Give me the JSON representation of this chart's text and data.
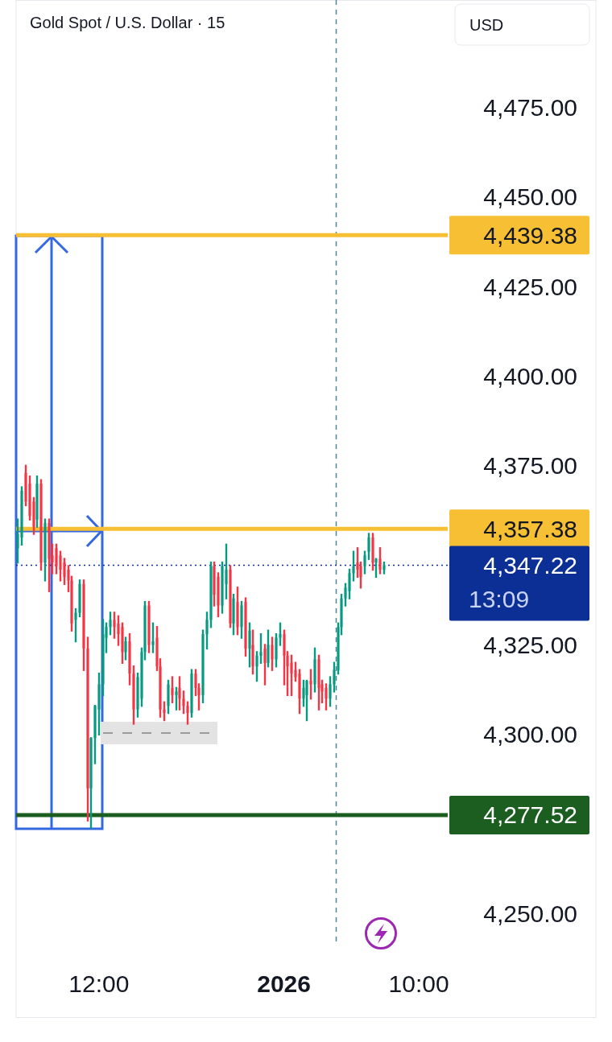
{
  "chart_data": {
    "type": "candlestick",
    "title": "Gold Spot / U.S. Dollar · 15",
    "categories": [
      null,
      null,
      null,
      null,
      null,
      null,
      null,
      null,
      null,
      null,
      null,
      null,
      null,
      null,
      null,
      null,
      null,
      null,
      null,
      null,
      null,
      "12:00",
      null,
      null,
      null,
      null,
      null,
      null,
      null,
      null,
      null,
      null,
      null,
      null,
      null,
      null,
      null,
      null,
      null,
      null,
      null,
      null,
      null,
      null,
      null,
      null,
      null,
      null,
      null,
      null,
      null,
      null,
      null,
      null,
      null,
      null,
      null,
      null,
      null,
      null,
      null,
      null,
      null,
      null,
      null,
      null,
      null,
      null,
      null,
      "2026",
      null,
      null,
      null,
      null,
      null,
      null,
      null,
      null,
      null,
      null,
      null,
      null,
      null,
      null,
      null,
      null,
      null,
      null,
      null,
      null,
      null,
      null,
      null,
      null,
      null,
      null,
      null,
      null,
      null,
      null,
      null,
      null,
      null,
      null,
      "10:00",
      null,
      null,
      null,
      null,
      null,
      null,
      null
    ],
    "ohlc": [
      [
        4352,
        4360,
        4348,
        4356
      ],
      [
        4355,
        4369,
        4353,
        4368
      ],
      [
        4373,
        4375,
        4364,
        4365
      ],
      [
        4370,
        4372,
        4360,
        4361
      ],
      [
        4365,
        4366,
        4356,
        4358
      ],
      [
        4360,
        4372,
        4358,
        4370
      ],
      [
        4370,
        4371,
        4346,
        4348
      ],
      [
        4348,
        4360,
        4343,
        4359
      ],
      [
        4359,
        4360,
        4340,
        4349
      ],
      [
        4350,
        4353,
        4345,
        4348
      ],
      [
        4352,
        4353,
        4345,
        4347
      ],
      [
        4350,
        4351,
        4343,
        4346
      ],
      [
        4348,
        4349,
        4342,
        4344
      ],
      [
        4346,
        4347,
        4340,
        4343
      ],
      [
        4343,
        4344,
        4329,
        4331
      ],
      [
        4332,
        4335,
        4326,
        4334
      ],
      [
        4334,
        4343,
        4333,
        4342
      ],
      [
        4342,
        4343,
        4318,
        4324
      ],
      [
        4324,
        4327,
        4276,
        4285
      ],
      [
        4285,
        4299,
        4274,
        4299
      ],
      [
        4299,
        4308,
        4292,
        4308
      ],
      [
        4307,
        4317,
        4300,
        4314
      ],
      [
        4314,
        4332,
        4311,
        4328
      ],
      [
        4327,
        4331,
        4323,
        4330
      ],
      [
        4330,
        4334,
        4328,
        4332
      ],
      [
        4332,
        4334,
        4327,
        4330
      ],
      [
        4331,
        4333,
        4325,
        4328
      ],
      [
        4330,
        4331,
        4320,
        4323
      ],
      [
        4323,
        4327,
        4321,
        4326
      ],
      [
        4326,
        4328,
        4314,
        4317
      ],
      [
        4317,
        4319,
        4303,
        4307
      ],
      [
        4307,
        4317,
        4305,
        4316
      ],
      [
        4310,
        4324,
        4308,
        4323
      ],
      [
        4323,
        4337,
        4321,
        4336
      ],
      [
        4336,
        4337,
        4323,
        4325
      ],
      [
        4325,
        4331,
        4323,
        4326
      ],
      [
        4327,
        4330,
        4318,
        4319
      ],
      [
        4319,
        4321,
        4305,
        4307
      ],
      [
        4307,
        4309,
        4304,
        4306
      ],
      [
        4308,
        4315,
        4306,
        4314
      ],
      [
        4313,
        4316,
        4309,
        4311
      ],
      [
        4311,
        4313,
        4307,
        4312
      ],
      [
        4313,
        4316,
        4307,
        4310
      ],
      [
        4310,
        4312,
        4306,
        4308
      ],
      [
        4308,
        4309,
        4303,
        4306
      ],
      [
        4306,
        4318,
        4305,
        4317
      ],
      [
        4317,
        4318,
        4311,
        4313
      ],
      [
        4313,
        4314,
        4307,
        4311
      ],
      [
        4311,
        4329,
        4309,
        4328
      ],
      [
        4328,
        4334,
        4324,
        4332
      ],
      [
        4332,
        4348,
        4330,
        4347
      ],
      [
        4347,
        4348,
        4336,
        4339
      ],
      [
        4344,
        4345,
        4333,
        4336
      ],
      [
        4336,
        4348,
        4334,
        4347
      ],
      [
        4342,
        4353,
        4338,
        4346
      ],
      [
        4346,
        4347,
        4330,
        4331
      ],
      [
        4331,
        4339,
        4328,
        4338
      ],
      [
        4337,
        4341,
        4328,
        4330
      ],
      [
        4330,
        4337,
        4327,
        4336
      ],
      [
        4337,
        4338,
        4322,
        4324
      ],
      [
        4324,
        4331,
        4319,
        4329
      ],
      [
        4325,
        4329,
        4317,
        4319
      ],
      [
        4319,
        4323,
        4315,
        4322
      ],
      [
        4322,
        4328,
        4320,
        4323
      ],
      [
        4324,
        4325,
        4314,
        4320
      ],
      [
        4320,
        4329,
        4319,
        4325
      ],
      [
        4325,
        4327,
        4318,
        4321
      ],
      [
        4321,
        4328,
        4319,
        4327
      ],
      [
        4327,
        4331,
        4325,
        4328
      ],
      [
        4328,
        4329,
        4314,
        4322
      ],
      [
        4322,
        4323,
        4311,
        4319
      ],
      [
        4320,
        4322,
        4311,
        4317
      ],
      [
        4318,
        4320,
        4315,
        4316
      ],
      [
        4317,
        4318,
        4306,
        4310
      ],
      [
        4310,
        4315,
        4308,
        4313
      ],
      [
        4311,
        4315,
        4304,
        4315
      ],
      [
        4315,
        4318,
        4310,
        4314
      ],
      [
        4314,
        4324,
        4312,
        4321
      ],
      [
        4321,
        4322,
        4307,
        4313
      ],
      [
        4314,
        4315,
        4309,
        4312
      ],
      [
        4313,
        4314,
        4307,
        4310
      ],
      [
        4310,
        4316,
        4308,
        4314
      ],
      [
        4314,
        4320,
        4312,
        4318
      ],
      [
        4318,
        4331,
        4317,
        4330
      ],
      [
        4330,
        4339,
        4328,
        4338
      ],
      [
        4338,
        4342,
        4336,
        4341
      ],
      [
        4340,
        4346,
        4338,
        4345
      ],
      [
        4345,
        4351,
        4343,
        4347
      ],
      [
        4348,
        4352,
        4344,
        4346
      ],
      [
        4347,
        4348,
        4341,
        4344
      ],
      [
        4347,
        4351,
        4345,
        4350
      ],
      [
        4351,
        4356,
        4349,
        4355
      ],
      [
        4355,
        4356,
        4346,
        4348
      ],
      [
        4348,
        4349,
        4344,
        4349
      ],
      [
        4349,
        4352,
        4345,
        4346
      ],
      [
        4346,
        4348,
        4345,
        4347.22
      ],
      null,
      null,
      null,
      null,
      null,
      null,
      null,
      null,
      null,
      null,
      null,
      null,
      null,
      null,
      null,
      null
    ],
    "colors": [
      "#089981",
      "#089981",
      "#f23645",
      "#f23645",
      "#f23645",
      "#089981",
      "#f23645",
      "#089981",
      "#f23645",
      "#f23645",
      "#f23645",
      "#f23645",
      "#f23645",
      "#f23645",
      "#f23645",
      "#089981",
      "#089981",
      "#f23645",
      "#f23645",
      "#089981",
      "#089981",
      "#089981",
      "#089981",
      "#089981",
      "#089981",
      "#f23645",
      "#f23645",
      "#f23645",
      "#089981",
      "#f23645",
      "#f23645",
      "#089981",
      "#089981",
      "#089981",
      "#f23645",
      "#089981",
      "#f23645",
      "#f23645",
      "#f23645",
      "#089981",
      "#f23645",
      "#089981",
      "#f23645",
      "#f23645",
      "#f23645",
      "#089981",
      "#f23645",
      "#f23645",
      "#089981",
      "#089981",
      "#089981",
      "#f23645",
      "#f23645",
      "#089981",
      "#089981",
      "#f23645",
      "#089981",
      "#f23645",
      "#089981",
      "#f23645",
      "#089981",
      "#f23645",
      "#089981",
      "#089981",
      "#f23645",
      "#089981",
      "#f23645",
      "#089981",
      "#089981",
      "#f23645",
      "#f23645",
      "#f23645",
      "#f23645",
      "#f23645",
      "#089981",
      "#089981",
      "#f23645",
      "#089981",
      "#f23645",
      "#f23645",
      "#f23645",
      "#089981",
      "#089981",
      "#089981",
      "#089981",
      "#089981",
      "#089981",
      "#089981",
      "#f23645",
      "#f23645",
      "#089981",
      "#089981",
      "#f23645",
      "#089981",
      "#f23645",
      "#089981",
      null,
      null,
      null,
      null,
      null,
      null,
      null,
      null,
      null,
      null,
      null,
      null,
      null,
      null,
      null,
      null
    ],
    "ylim": [
      4240,
      4505
    ],
    "yticks": [
      {
        "value": 4475,
        "label": "4,475.00"
      },
      {
        "value": 4450,
        "label": "4,450.00"
      },
      {
        "value": 4425,
        "label": "4,425.00"
      },
      {
        "value": 4400,
        "label": "4,400.00"
      },
      {
        "value": 4375,
        "label": "4,375.00"
      },
      {
        "value": 4325,
        "label": "4,325.00"
      },
      {
        "value": 4300,
        "label": "4,300.00"
      },
      {
        "value": 4250,
        "label": "4,250.00"
      }
    ],
    "ref_lines": [
      {
        "axis": "y",
        "value": 4439.38,
        "label": "4,439.38",
        "color": "#f7bf33",
        "line_style": "solid"
      },
      {
        "axis": "y",
        "value": 4357.38,
        "label": "4,357.38",
        "color": "#f7bf33",
        "line_style": "solid"
      },
      {
        "axis": "y",
        "value": 4277.52,
        "label": "4,277.52",
        "color": "#1b5e20",
        "line_style": "solid"
      },
      {
        "axis": "y",
        "value": 4347.22,
        "label": "4,347.22",
        "color": "#0c2f96",
        "line_style": "dotted"
      }
    ],
    "annotations": [
      "USD",
      "13:09"
    ]
  }
}
